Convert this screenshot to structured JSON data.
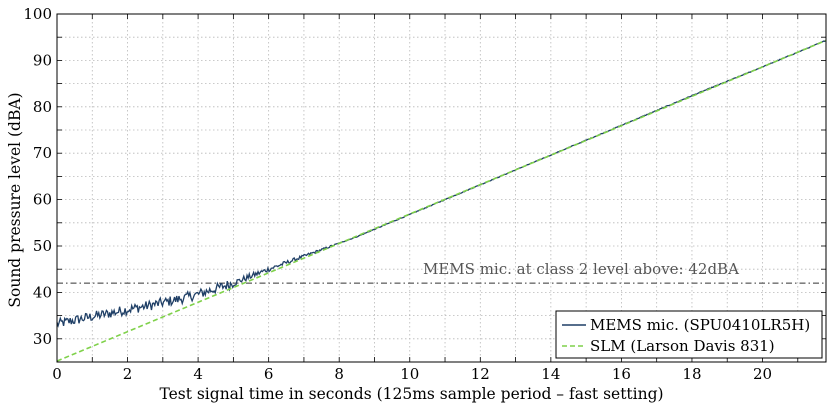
{
  "chart_data": {
    "type": "line",
    "xlabel": "Test signal time in seconds (125ms sample period – fast setting)",
    "ylabel": "Sound pressure level (dBA)",
    "xlim": [
      0,
      21.8
    ],
    "ylim": [
      25,
      100
    ],
    "xticks": [
      0,
      2,
      4,
      6,
      8,
      10,
      12,
      14,
      16,
      18,
      20
    ],
    "yticks": [
      30,
      40,
      50,
      60,
      70,
      80,
      90,
      100
    ],
    "grid": true,
    "legend_position": "bottom-right",
    "series": [
      {
        "name": "MEMS mic. (SPU0410LR5H)",
        "color": "#1f3f66",
        "style": "solid",
        "x": [
          0,
          0.5,
          1,
          1.5,
          2,
          2.5,
          3,
          3.5,
          4,
          4.5,
          5,
          5.5,
          6,
          6.5,
          7,
          7.5,
          8,
          8.5,
          9,
          9.5,
          10,
          12,
          14,
          16,
          18,
          20,
          21.8
        ],
        "y": [
          33.2,
          34.0,
          34.8,
          35.5,
          36.3,
          37.0,
          37.8,
          38.6,
          39.6,
          40.8,
          42.0,
          43.5,
          45.0,
          46.4,
          47.8,
          49.2,
          50.6,
          52.0,
          53.6,
          55.2,
          56.8,
          63.2,
          69.6,
          76.0,
          82.4,
          88.6,
          94.3
        ]
      },
      {
        "name": "SLM (Larson Davis 831)",
        "color": "#7fd14a",
        "style": "dashed",
        "x": [
          0,
          21.8
        ],
        "y": [
          25.2,
          94.3
        ]
      }
    ],
    "reference_line": {
      "y": 42,
      "label": "MEMS mic. at class 2 level above: 42dBA",
      "style": "dash-dot",
      "color": "#333333"
    }
  }
}
